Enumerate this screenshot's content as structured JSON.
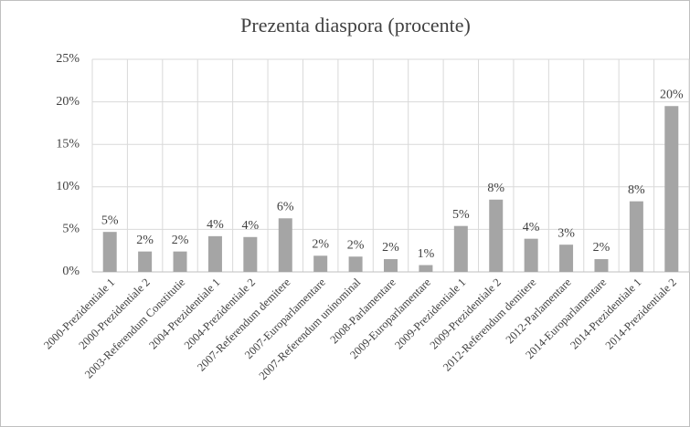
{
  "chart_data": {
    "type": "bar",
    "title": "Prezenta diaspora (procente)",
    "categories": [
      "2000-Prezidentiale 1",
      "2000-Prezidentiale 2",
      "2003-Referendum Constitutie",
      "2004-Prezidentiale 1",
      "2004-Prezidentiale 2",
      "2007-Referendum demitere",
      "2007-Europarlamentare",
      "2007-Referendum uninominal",
      "2008-Parlamentare",
      "2009-Europarlamentare",
      "2009-Prezidentiale 1",
      "2009-Prezidentiale 2",
      "2012-Referendum demitere",
      "2012-Parlamentare",
      "2014-Europarlamentare",
      "2014-Prezidentiale 1",
      "2014-Prezidentiale 2"
    ],
    "values": [
      4.7,
      2.4,
      2.4,
      4.2,
      4.1,
      6.3,
      1.9,
      1.8,
      1.5,
      0.8,
      5.4,
      8.5,
      3.9,
      3.2,
      1.5,
      8.3,
      19.5
    ],
    "value_labels": [
      "5%",
      "2%",
      "2%",
      "4%",
      "4%",
      "6%",
      "2%",
      "2%",
      "2%",
      "1%",
      "5%",
      "8%",
      "4%",
      "3%",
      "2%",
      "8%",
      "20%"
    ],
    "color": "#a5a5a5",
    "ylim": [
      0,
      25
    ],
    "yticks": [
      {
        "value": 0,
        "label": "0%"
      },
      {
        "value": 5,
        "label": "5%"
      },
      {
        "value": 10,
        "label": "10%"
      },
      {
        "value": 15,
        "label": "15%"
      },
      {
        "value": 20,
        "label": "20%"
      },
      {
        "value": 25,
        "label": "25%"
      }
    ],
    "grid": true
  }
}
